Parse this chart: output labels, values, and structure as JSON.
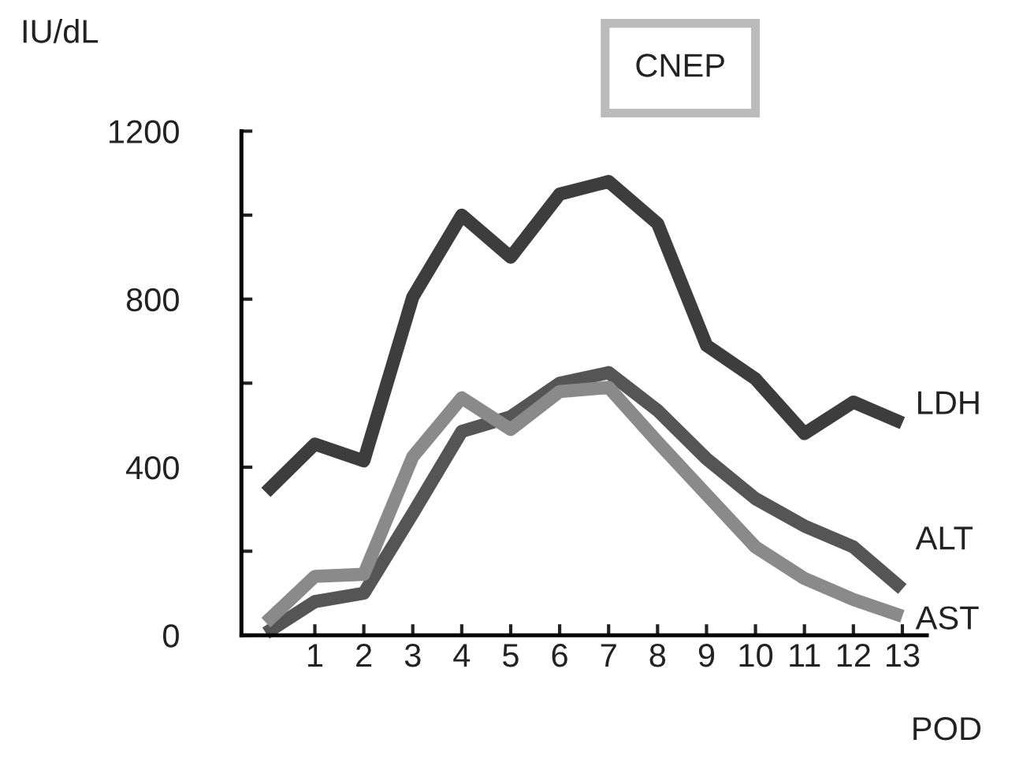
{
  "chart_data": {
    "type": "line",
    "title": "CNEP",
    "ylabel": "IU/dL",
    "xlabel": "POD",
    "x": [
      0,
      1,
      2,
      3,
      4,
      5,
      6,
      7,
      8,
      9,
      10,
      11,
      12,
      13
    ],
    "series": [
      {
        "name": "LDH",
        "color": "#3d3d3d",
        "values": [
          340,
          455,
          415,
          805,
          1000,
          900,
          1050,
          1080,
          980,
          690,
          610,
          480,
          555,
          505
        ]
      },
      {
        "name": "ALT",
        "color": "#555555",
        "values": [
          5,
          80,
          100,
          290,
          485,
          520,
          600,
          625,
          535,
          420,
          325,
          260,
          210,
          110
        ]
      },
      {
        "name": "AST",
        "color": "#8a8a8a",
        "values": [
          30,
          140,
          145,
          425,
          565,
          490,
          580,
          590,
          460,
          335,
          210,
          135,
          85,
          45
        ]
      }
    ],
    "xlim": [
      -0.5,
      13.5
    ],
    "xticks": [
      1,
      2,
      3,
      4,
      5,
      6,
      7,
      8,
      9,
      10,
      11,
      12,
      13
    ],
    "ylim": [
      0,
      1200
    ],
    "yticks": [
      0,
      {
        "value": 200,
        "label": null
      },
      400,
      {
        "value": 600,
        "label": null
      },
      800,
      {
        "value": 1000,
        "label": null
      },
      1200
    ],
    "grid": false,
    "legend": false,
    "marker": "none",
    "line_style": "solid"
  }
}
